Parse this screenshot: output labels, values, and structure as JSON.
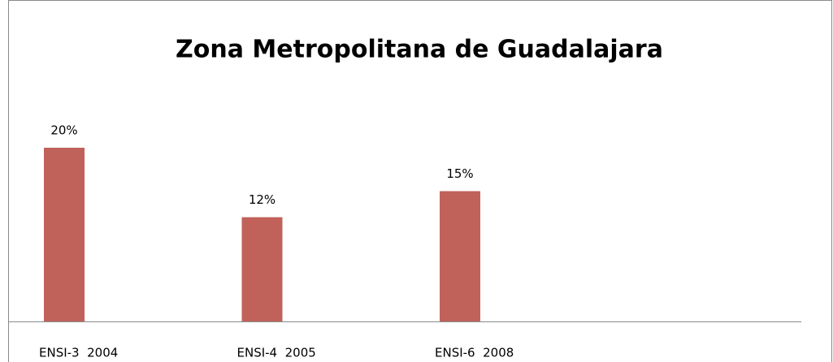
{
  "chart_data": {
    "type": "bar",
    "title": "Zona Metropolitana de Guadalajara",
    "categories": [
      "ENSI-3  2004",
      "ENSI-4  2005",
      "ENSI-6  2008"
    ],
    "values": [
      20,
      12,
      15
    ],
    "value_labels": [
      "20%",
      "12%",
      "15%"
    ],
    "color": "#c0625a"
  }
}
